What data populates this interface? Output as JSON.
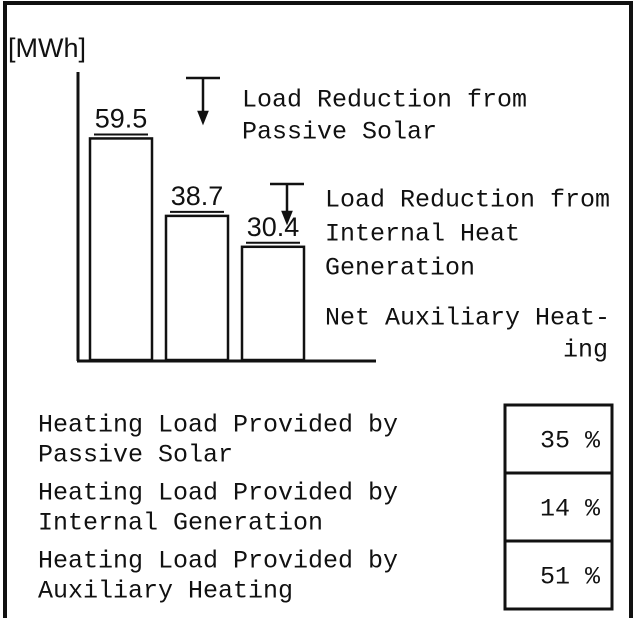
{
  "chart_data": {
    "type": "bar",
    "ylabel": "[MWh]",
    "categories": [
      null,
      null,
      null
    ],
    "values": [
      59.5,
      38.7,
      30.4
    ],
    "color": "#ffffff",
    "ylim": [
      0,
      76
    ],
    "annotations": [
      {
        "lines": [
          "Load Reduction from",
          "Passive Solar"
        ]
      },
      {
        "lines": [
          "Load Reduction from",
          "Internal Heat",
          "Generation"
        ]
      },
      {
        "lines": [
          "Net Auxiliary Heat-",
          "ing"
        ]
      }
    ]
  },
  "table": {
    "rows": [
      {
        "lines": [
          "Heating Load Provided by",
          "Passive Solar"
        ],
        "value": "35 %"
      },
      {
        "lines": [
          "Heating Load Provided by",
          "Internal Generation"
        ],
        "value": "14 %"
      },
      {
        "lines": [
          "Heating Load Provided by",
          "Auxiliary Heating"
        ],
        "value": "51 %"
      }
    ]
  }
}
